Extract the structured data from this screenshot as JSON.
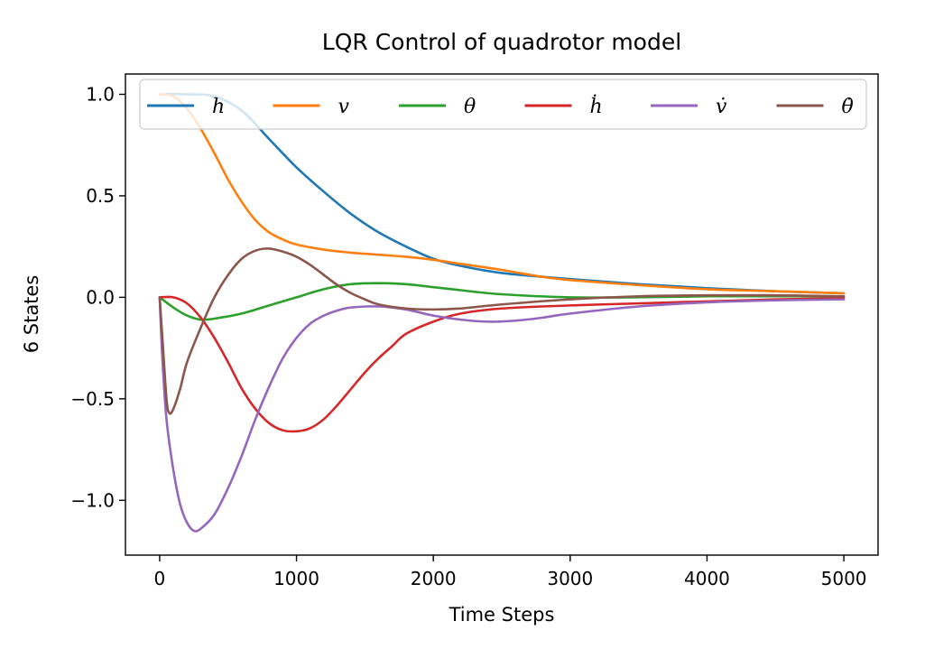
{
  "chart_data": {
    "type": "line",
    "title": "LQR Control of quadrotor model",
    "xlabel": "Time Steps",
    "ylabel": "6 States",
    "xlim": [
      -250,
      5250
    ],
    "ylim": [
      -1.27,
      1.1
    ],
    "xticks": [
      0,
      1000,
      2000,
      3000,
      4000,
      5000
    ],
    "xtick_labels": [
      "0",
      "1000",
      "2000",
      "3000",
      "4000",
      "5000"
    ],
    "yticks": [
      1.0,
      0.5,
      0.0,
      -0.5,
      -1.0
    ],
    "ytick_labels": [
      "1.0",
      "0.5",
      "0.0",
      "−0.5",
      "−1.0"
    ],
    "grid": false,
    "legend_placement": "top",
    "series": [
      {
        "name": "h",
        "color": "#1f77b4",
        "points": [
          [
            0,
            1.0
          ],
          [
            200,
            1.0
          ],
          [
            400,
            0.99
          ],
          [
            600,
            0.92
          ],
          [
            800,
            0.78
          ],
          [
            1000,
            0.64
          ],
          [
            1200,
            0.52
          ],
          [
            1400,
            0.41
          ],
          [
            1600,
            0.32
          ],
          [
            1800,
            0.25
          ],
          [
            2000,
            0.19
          ],
          [
            2200,
            0.155
          ],
          [
            2500,
            0.12
          ],
          [
            3000,
            0.09
          ],
          [
            3500,
            0.065
          ],
          [
            4000,
            0.045
          ],
          [
            4500,
            0.03
          ],
          [
            5000,
            0.02
          ]
        ]
      },
      {
        "name": "v",
        "color": "#ff7f0e",
        "points": [
          [
            0,
            1.0
          ],
          [
            100,
            0.99
          ],
          [
            200,
            0.93
          ],
          [
            300,
            0.83
          ],
          [
            400,
            0.71
          ],
          [
            500,
            0.58
          ],
          [
            600,
            0.47
          ],
          [
            700,
            0.38
          ],
          [
            800,
            0.32
          ],
          [
            900,
            0.285
          ],
          [
            1000,
            0.26
          ],
          [
            1200,
            0.235
          ],
          [
            1400,
            0.22
          ],
          [
            1600,
            0.21
          ],
          [
            1800,
            0.2
          ],
          [
            2000,
            0.185
          ],
          [
            2200,
            0.165
          ],
          [
            2500,
            0.135
          ],
          [
            2800,
            0.1
          ],
          [
            3000,
            0.085
          ],
          [
            3500,
            0.06
          ],
          [
            4000,
            0.04
          ],
          [
            4500,
            0.03
          ],
          [
            5000,
            0.02
          ]
        ]
      },
      {
        "name": "θ",
        "color": "#2ca02c",
        "points": [
          [
            0,
            0.0
          ],
          [
            100,
            -0.05
          ],
          [
            200,
            -0.09
          ],
          [
            300,
            -0.11
          ],
          [
            400,
            -0.105
          ],
          [
            600,
            -0.08
          ],
          [
            800,
            -0.04
          ],
          [
            1000,
            0.0
          ],
          [
            1200,
            0.04
          ],
          [
            1400,
            0.065
          ],
          [
            1600,
            0.07
          ],
          [
            1800,
            0.065
          ],
          [
            2000,
            0.05
          ],
          [
            2200,
            0.035
          ],
          [
            2500,
            0.015
          ],
          [
            3000,
            0.0
          ],
          [
            3500,
            0.0
          ],
          [
            4000,
            0.005
          ],
          [
            4500,
            0.005
          ],
          [
            5000,
            0.005
          ]
        ]
      },
      {
        "name": "ḣ",
        "color": "#d62728",
        "points": [
          [
            0,
            0.0
          ],
          [
            100,
            0.0
          ],
          [
            200,
            -0.03
          ],
          [
            300,
            -0.1
          ],
          [
            400,
            -0.2
          ],
          [
            500,
            -0.32
          ],
          [
            600,
            -0.45
          ],
          [
            700,
            -0.55
          ],
          [
            800,
            -0.62
          ],
          [
            900,
            -0.655
          ],
          [
            1000,
            -0.66
          ],
          [
            1100,
            -0.645
          ],
          [
            1200,
            -0.6
          ],
          [
            1300,
            -0.53
          ],
          [
            1400,
            -0.45
          ],
          [
            1500,
            -0.37
          ],
          [
            1600,
            -0.3
          ],
          [
            1700,
            -0.24
          ],
          [
            1800,
            -0.18
          ],
          [
            2000,
            -0.12
          ],
          [
            2200,
            -0.08
          ],
          [
            2500,
            -0.055
          ],
          [
            3000,
            -0.04
          ],
          [
            3500,
            -0.03
          ],
          [
            4000,
            -0.02
          ],
          [
            4500,
            -0.01
          ],
          [
            5000,
            -0.005
          ]
        ]
      },
      {
        "name": "v̇",
        "color": "#9467bd",
        "points": [
          [
            0,
            0.0
          ],
          [
            20,
            -0.3
          ],
          [
            50,
            -0.6
          ],
          [
            100,
            -0.85
          ],
          [
            150,
            -1.02
          ],
          [
            200,
            -1.11
          ],
          [
            250,
            -1.15
          ],
          [
            300,
            -1.14
          ],
          [
            400,
            -1.07
          ],
          [
            500,
            -0.94
          ],
          [
            600,
            -0.78
          ],
          [
            700,
            -0.6
          ],
          [
            800,
            -0.44
          ],
          [
            900,
            -0.3
          ],
          [
            1000,
            -0.2
          ],
          [
            1100,
            -0.13
          ],
          [
            1200,
            -0.09
          ],
          [
            1300,
            -0.065
          ],
          [
            1400,
            -0.05
          ],
          [
            1600,
            -0.045
          ],
          [
            1800,
            -0.06
          ],
          [
            2000,
            -0.09
          ],
          [
            2200,
            -0.11
          ],
          [
            2400,
            -0.12
          ],
          [
            2600,
            -0.115
          ],
          [
            2800,
            -0.1
          ],
          [
            3000,
            -0.08
          ],
          [
            3500,
            -0.045
          ],
          [
            4000,
            -0.025
          ],
          [
            4500,
            -0.015
          ],
          [
            5000,
            -0.01
          ]
        ]
      },
      {
        "name": "θ̇",
        "color": "#8c564b",
        "points": [
          [
            0,
            0.0
          ],
          [
            20,
            -0.2
          ],
          [
            50,
            -0.5
          ],
          [
            70,
            -0.57
          ],
          [
            100,
            -0.55
          ],
          [
            150,
            -0.45
          ],
          [
            200,
            -0.32
          ],
          [
            300,
            -0.15
          ],
          [
            400,
            0.0
          ],
          [
            500,
            0.11
          ],
          [
            600,
            0.19
          ],
          [
            700,
            0.23
          ],
          [
            800,
            0.24
          ],
          [
            900,
            0.225
          ],
          [
            1000,
            0.2
          ],
          [
            1100,
            0.16
          ],
          [
            1200,
            0.11
          ],
          [
            1300,
            0.06
          ],
          [
            1400,
            0.02
          ],
          [
            1500,
            -0.01
          ],
          [
            1600,
            -0.035
          ],
          [
            1800,
            -0.055
          ],
          [
            2000,
            -0.06
          ],
          [
            2200,
            -0.055
          ],
          [
            2500,
            -0.035
          ],
          [
            3000,
            -0.01
          ],
          [
            3500,
            0.005
          ],
          [
            4000,
            0.01
          ],
          [
            4500,
            0.01
          ],
          [
            5000,
            0.005
          ]
        ]
      }
    ]
  }
}
